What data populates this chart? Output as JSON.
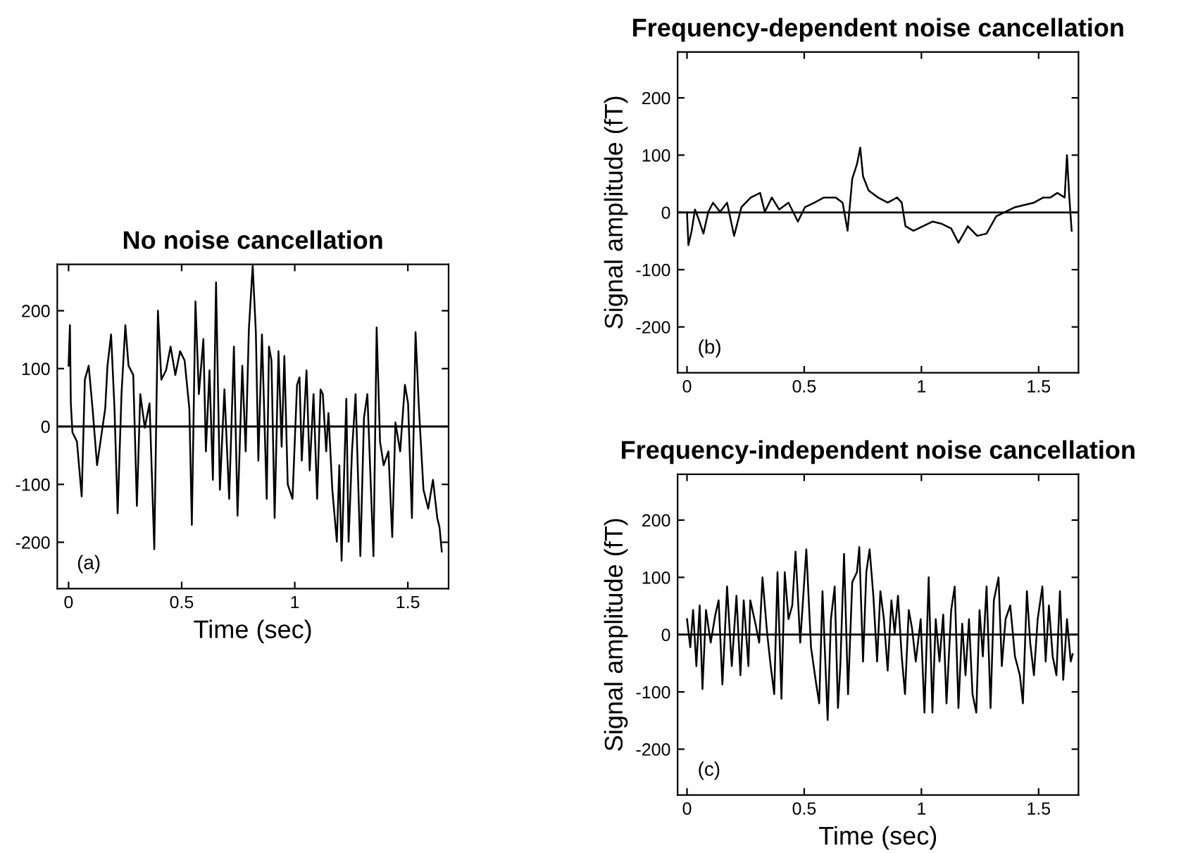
{
  "chart_data": [
    {
      "type": "line",
      "title": "No noise cancellation",
      "xlabel": "Time (sec)",
      "annotations": [
        "(a)"
      ],
      "xlim": [
        -0.05,
        1.68
      ],
      "ylim": [
        -280,
        280
      ],
      "xticks": [
        0,
        0.5,
        1,
        1.5
      ],
      "yticks": [
        -200,
        -100,
        0,
        100,
        200
      ],
      "grid": false,
      "legend": false,
      "ref_lines": [
        {
          "axis": "y",
          "value": 0,
          "color": "#000000"
        }
      ],
      "series": [
        {
          "color": "#000000",
          "x": [
            0.0,
            0.006,
            0.01,
            0.017,
            0.037,
            0.058,
            0.072,
            0.089,
            0.106,
            0.126,
            0.141,
            0.162,
            0.172,
            0.188,
            0.203,
            0.217,
            0.234,
            0.251,
            0.265,
            0.286,
            0.302,
            0.317,
            0.337,
            0.358,
            0.379,
            0.395,
            0.41,
            0.431,
            0.451,
            0.472,
            0.493,
            0.513,
            0.534,
            0.545,
            0.561,
            0.576,
            0.596,
            0.607,
            0.623,
            0.638,
            0.652,
            0.669,
            0.689,
            0.71,
            0.731,
            0.747,
            0.768,
            0.783,
            0.797,
            0.814,
            0.828,
            0.839,
            0.855,
            0.876,
            0.886,
            0.897,
            0.911,
            0.928,
            0.942,
            0.954,
            0.969,
            0.99,
            1.01,
            1.021,
            1.031,
            1.052,
            1.066,
            1.083,
            1.099,
            1.114,
            1.124,
            1.139,
            1.149,
            1.166,
            1.186,
            1.197,
            1.207,
            1.228,
            1.238,
            1.253,
            1.269,
            1.29,
            1.306,
            1.321,
            1.348,
            1.362,
            1.377,
            1.393,
            1.414,
            1.431,
            1.445,
            1.466,
            1.487,
            1.501,
            1.518,
            1.534,
            1.549,
            1.569,
            1.59,
            1.611,
            1.63,
            1.64,
            1.65
          ],
          "values": [
            105,
            175,
            40,
            -10,
            -26,
            -121,
            81,
            105,
            31,
            -67,
            -26,
            31,
            105,
            159,
            31,
            -150,
            56,
            175,
            105,
            89,
            -137,
            56,
            -2,
            40,
            -212,
            200,
            81,
            97,
            138,
            89,
            130,
            114,
            31,
            -170,
            216,
            56,
            151,
            -43,
            97,
            -92,
            249,
            -109,
            64,
            -125,
            138,
            -154,
            105,
            -43,
            167,
            278,
            163,
            -59,
            159,
            -125,
            138,
            114,
            -158,
            130,
            -35,
            122,
            -100,
            -125,
            72,
            85,
            -59,
            97,
            -76,
            56,
            -125,
            64,
            56,
            -43,
            23,
            -109,
            -199,
            -67,
            -232,
            48,
            -199,
            -43,
            56,
            -224,
            15,
            56,
            -224,
            171,
            -26,
            -67,
            -43,
            -191,
            7,
            -43,
            72,
            40,
            -158,
            163,
            31,
            -109,
            -142,
            -92,
            -158,
            -174,
            -216
          ]
        }
      ]
    },
    {
      "type": "line",
      "title": "Frequency-dependent noise cancellation",
      "ylabel": "Signal amplitude (fT)",
      "annotations": [
        "(b)"
      ],
      "xlim": [
        -0.04,
        1.67
      ],
      "ylim": [
        -280,
        280
      ],
      "xticks": [
        0,
        0.5,
        1,
        1.5
      ],
      "yticks": [
        -200,
        -100,
        0,
        100,
        200
      ],
      "grid": false,
      "legend": false,
      "ref_lines": [
        {
          "axis": "y",
          "value": 0,
          "color": "#000000"
        }
      ],
      "series": [
        {
          "color": "#000000",
          "x": [
            0,
            0.006,
            0.02,
            0.034,
            0.05,
            0.07,
            0.091,
            0.111,
            0.141,
            0.171,
            0.201,
            0.232,
            0.272,
            0.312,
            0.332,
            0.362,
            0.393,
            0.433,
            0.473,
            0.503,
            0.544,
            0.584,
            0.634,
            0.664,
            0.685,
            0.705,
            0.725,
            0.739,
            0.751,
            0.775,
            0.815,
            0.856,
            0.896,
            0.916,
            0.932,
            0.966,
            1.007,
            1.047,
            1.087,
            1.127,
            1.158,
            1.198,
            1.238,
            1.278,
            1.319,
            1.359,
            1.399,
            1.439,
            1.48,
            1.52,
            1.55,
            1.58,
            1.611,
            1.621,
            1.631,
            1.641
          ],
          "values": [
            0,
            -57,
            -32,
            5,
            -12,
            -37,
            1,
            17,
            1,
            17,
            -41,
            9,
            26,
            34,
            1,
            26,
            5,
            17,
            -16,
            9,
            17,
            26,
            26,
            17,
            -32,
            59,
            84,
            113,
            63,
            38,
            26,
            17,
            26,
            17,
            -24,
            -32,
            -24,
            -16,
            -20,
            -28,
            -53,
            -24,
            -41,
            -37,
            -7,
            1,
            9,
            13,
            17,
            26,
            26,
            34,
            26,
            100,
            26,
            -32
          ]
        }
      ]
    },
    {
      "type": "line",
      "title": "Frequency-independent noise cancellation",
      "xlabel": "Time (sec)",
      "ylabel": "Signal amplitude (fT)",
      "annotations": [
        "(c)"
      ],
      "xlim": [
        -0.04,
        1.67
      ],
      "ylim": [
        -280,
        280
      ],
      "xticks": [
        0,
        0.5,
        1,
        1.5
      ],
      "yticks": [
        -200,
        -100,
        0,
        100,
        200
      ],
      "grid": false,
      "legend": false,
      "ref_lines": [
        {
          "axis": "y",
          "value": 0,
          "color": "#000000"
        }
      ],
      "series": [
        {
          "color": "#000000",
          "x": [
            0,
            0.014,
            0.026,
            0.04,
            0.054,
            0.066,
            0.081,
            0.101,
            0.121,
            0.135,
            0.151,
            0.171,
            0.191,
            0.211,
            0.228,
            0.242,
            0.262,
            0.27,
            0.292,
            0.308,
            0.322,
            0.342,
            0.356,
            0.372,
            0.386,
            0.403,
            0.417,
            0.433,
            0.449,
            0.463,
            0.483,
            0.509,
            0.529,
            0.55,
            0.564,
            0.578,
            0.6,
            0.614,
            0.63,
            0.644,
            0.654,
            0.67,
            0.687,
            0.705,
            0.725,
            0.735,
            0.751,
            0.765,
            0.779,
            0.795,
            0.811,
            0.825,
            0.84,
            0.856,
            0.872,
            0.886,
            0.9,
            0.916,
            0.93,
            0.946,
            0.96,
            0.976,
            0.997,
            1.013,
            1.031,
            1.047,
            1.061,
            1.077,
            1.093,
            1.107,
            1.127,
            1.142,
            1.158,
            1.174,
            1.188,
            1.203,
            1.218,
            1.234,
            1.248,
            1.262,
            1.278,
            1.295,
            1.309,
            1.329,
            1.343,
            1.359,
            1.379,
            1.399,
            1.42,
            1.433,
            1.45,
            1.464,
            1.48,
            1.496,
            1.516,
            1.53,
            1.544,
            1.56,
            1.576,
            1.591,
            1.605,
            1.621,
            1.637,
            1.645
          ],
          "values": [
            27,
            -22,
            43,
            -55,
            51,
            -95,
            43,
            -14,
            35,
            60,
            -87,
            84,
            -55,
            68,
            -71,
            60,
            -55,
            60,
            19,
            -14,
            100,
            2,
            -51,
            -104,
            109,
            -112,
            109,
            27,
            51,
            145,
            -14,
            149,
            -22,
            -83,
            -120,
            76,
            -149,
            27,
            84,
            -128,
            -55,
            141,
            -104,
            92,
            109,
            153,
            -47,
            109,
            149,
            68,
            -47,
            76,
            27,
            -63,
            60,
            2,
            68,
            -38,
            -104,
            43,
            11,
            -47,
            27,
            -136,
            100,
            -136,
            27,
            -47,
            35,
            -120,
            43,
            84,
            -128,
            19,
            -71,
            27,
            -104,
            -136,
            43,
            -38,
            84,
            -128,
            60,
            100,
            -55,
            27,
            51,
            -38,
            -71,
            -120,
            76,
            -14,
            -71,
            27,
            84,
            -47,
            51,
            -38,
            -71,
            76,
            -79,
            27,
            -47,
            -34
          ]
        }
      ]
    }
  ]
}
